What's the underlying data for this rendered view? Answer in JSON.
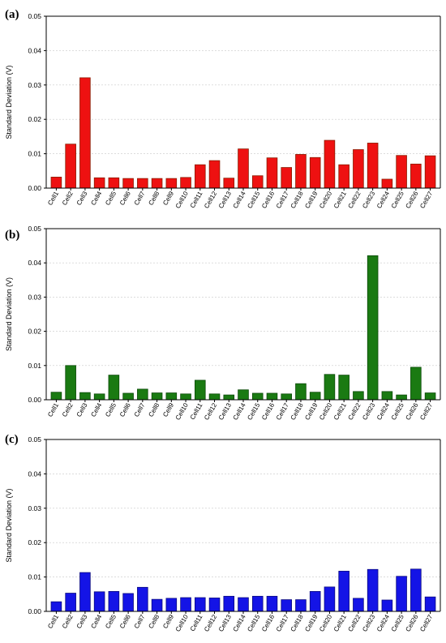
{
  "chart_data": [
    {
      "panel_label": "(a)",
      "type": "bar",
      "ylabel": "Standard Deviation (V)",
      "xlabel": "",
      "ylim": [
        0,
        0.05
      ],
      "yticks": [
        "0.00",
        "0.01",
        "0.02",
        "0.03",
        "0.04",
        "0.05"
      ],
      "grid": true,
      "bar_color": "#ee1111",
      "edge_color": "#8b1a00",
      "categories": [
        "Cell1",
        "Cell2",
        "Cell3",
        "Cell4",
        "Cell5",
        "Cell6",
        "Cell7",
        "Cell8",
        "Cell9",
        "Cell10",
        "Cell11",
        "Cell12",
        "Cell13",
        "Cell14",
        "Cell15",
        "Cell16",
        "Cell17",
        "Cell18",
        "Cell19",
        "Cell20",
        "Cell21",
        "Cell22",
        "Cell23",
        "Cell24",
        "Cell25",
        "Cell26",
        "Cell27"
      ],
      "values": [
        0.0032,
        0.0128,
        0.0321,
        0.003,
        0.003,
        0.0028,
        0.0028,
        0.0028,
        0.0028,
        0.0031,
        0.0068,
        0.008,
        0.0029,
        0.0114,
        0.0036,
        0.0088,
        0.006,
        0.0098,
        0.0089,
        0.0139,
        0.0068,
        0.0112,
        0.0131,
        0.0026,
        0.0095,
        0.007,
        0.0094
      ]
    },
    {
      "panel_label": "(b)",
      "type": "bar",
      "ylabel": "Standard Deviation (V)",
      "xlabel": "",
      "ylim": [
        0,
        0.05
      ],
      "yticks": [
        "0.00",
        "0.01",
        "0.02",
        "0.03",
        "0.04",
        "0.05"
      ],
      "grid": true,
      "bar_color": "#1a7a12",
      "edge_color": "#0b4a08",
      "categories": [
        "Cell1",
        "Cell2",
        "Cell3",
        "Cell4",
        "Cell5",
        "Cell6",
        "Cell7",
        "Cell8",
        "Cell9",
        "Cell10",
        "Cell11",
        "Cell12",
        "Cell13",
        "Cell14",
        "Cell15",
        "Cell16",
        "Cell17",
        "Cell18",
        "Cell19",
        "Cell20",
        "Cell21",
        "Cell22",
        "Cell23",
        "Cell24",
        "Cell25",
        "Cell26",
        "Cell27"
      ],
      "values": [
        0.0022,
        0.01,
        0.0021,
        0.0017,
        0.0072,
        0.0019,
        0.0031,
        0.002,
        0.002,
        0.0017,
        0.0057,
        0.0017,
        0.0014,
        0.0029,
        0.0019,
        0.0019,
        0.0017,
        0.0047,
        0.0022,
        0.0074,
        0.0072,
        0.0024,
        0.0421,
        0.0024,
        0.0014,
        0.0095,
        0.002
      ]
    },
    {
      "panel_label": "(c)",
      "type": "bar",
      "ylabel": "Standard Deviation (V)",
      "xlabel": "",
      "ylim": [
        0,
        0.05
      ],
      "yticks": [
        "0.00",
        "0.01",
        "0.02",
        "0.03",
        "0.04",
        "0.05"
      ],
      "grid": true,
      "bar_color": "#1414e6",
      "edge_color": "#0a0a80",
      "categories": [
        "Cell1",
        "Cell2",
        "Cell3",
        "Cell4",
        "Cell5",
        "Cell6",
        "Cell7",
        "Cell8",
        "Cell9",
        "Cell10",
        "Cell11",
        "Cell12",
        "Cell13",
        "Cell14",
        "Cell15",
        "Cell16",
        "Cell17",
        "Cell18",
        "Cell19",
        "Cell20",
        "Cell21",
        "Cell22",
        "Cell23",
        "Cell24",
        "Cell25",
        "Cell26",
        "Cell27"
      ],
      "values": [
        0.0028,
        0.0053,
        0.0113,
        0.0057,
        0.0058,
        0.0052,
        0.007,
        0.0035,
        0.0038,
        0.004,
        0.004,
        0.0039,
        0.0044,
        0.004,
        0.0044,
        0.0044,
        0.0034,
        0.0034,
        0.0058,
        0.0071,
        0.0117,
        0.0038,
        0.0122,
        0.0033,
        0.0102,
        0.0123,
        0.0042
      ]
    }
  ]
}
